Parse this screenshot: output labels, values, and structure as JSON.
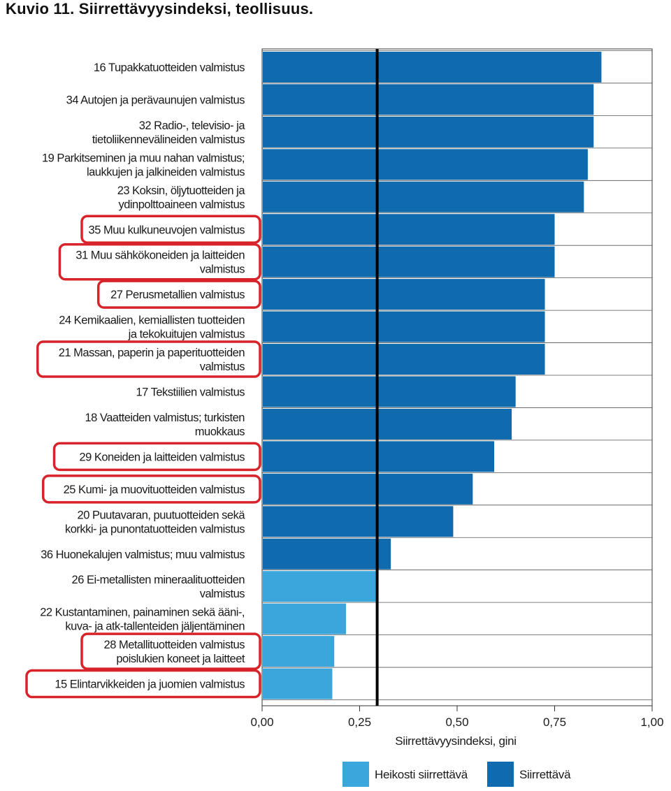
{
  "figure_title": "Kuvio 11. Siirrettävyysindeksi, teollisuus.",
  "colors": {
    "strong": "#0f6aae",
    "weak": "#3aa6dc",
    "highlight": "#d8232a",
    "threshold_line": "#000000"
  },
  "chart_data": {
    "type": "bar",
    "orientation": "horizontal",
    "title": "",
    "xlabel": "Siirrettävyysindeksi, gini",
    "ylabel": "",
    "xlim": [
      0,
      1
    ],
    "x_ticks": [
      "0,00",
      "0,25",
      "0,50",
      "0,75",
      "1,00"
    ],
    "threshold": 0.295,
    "grid": true,
    "legend_position": "bottom",
    "legend": [
      {
        "name": "Heikosti siirrettävä",
        "color": "#3aa6dc"
      },
      {
        "name": "Siirrettävä",
        "color": "#0f6aae"
      }
    ],
    "categories": [
      [
        "16 Tupakkatuotteiden valmistus"
      ],
      [
        "34 Autojen ja perävaunujen valmistus"
      ],
      [
        "32 Radio-, televisio- ja",
        "tietoliikennevälineiden valmistus"
      ],
      [
        "19 Parkitseminen ja muu nahan valmistus;",
        "laukkujen ja jalkineiden valmistus"
      ],
      [
        "23 Koksin, öljytuotteiden ja",
        "ydinpolttoaineen valmistus"
      ],
      [
        "35 Muu kulkuneuvojen valmistus"
      ],
      [
        "31 Muu sähkökoneiden ja laitteiden",
        "valmistus"
      ],
      [
        "27 Perusmetallien valmistus"
      ],
      [
        "24 Kemikaalien, kemiallisten tuotteiden",
        "ja tekokuitujen valmistus"
      ],
      [
        "21 Massan, paperin ja paperituotteiden",
        "valmistus"
      ],
      [
        "17 Tekstiilien valmistus"
      ],
      [
        "18 Vaatteiden valmistus; turkisten",
        "muokkaus"
      ],
      [
        "29 Koneiden ja laitteiden valmistus"
      ],
      [
        "25 Kumi- ja muovituotteiden valmistus"
      ],
      [
        "20 Puutavaran, puutuotteiden sekä",
        "korkki- ja punontatuotteiden valmistus"
      ],
      [
        "36 Huonekalujen valmistus; muu valmistus"
      ],
      [
        "26 Ei-metallisten mineraalituotteiden",
        "valmistus"
      ],
      [
        "22 Kustantaminen, painaminen sekä ääni-,",
        "kuva- ja atk-tallenteiden jäljentäminen"
      ],
      [
        "28 Metallituotteiden valmistus",
        "poislukien koneet ja laitteet"
      ],
      [
        "15 Elintarvikkeiden ja juomien valmistus"
      ]
    ],
    "values": [
      0.87,
      0.85,
      0.85,
      0.835,
      0.825,
      0.75,
      0.75,
      0.725,
      0.725,
      0.725,
      0.65,
      0.64,
      0.595,
      0.54,
      0.49,
      0.33,
      0.295,
      0.215,
      0.185,
      0.18
    ],
    "group": [
      "Siirrettävä",
      "Siirrettävä",
      "Siirrettävä",
      "Siirrettävä",
      "Siirrettävä",
      "Siirrettävä",
      "Siirrettävä",
      "Siirrettävä",
      "Siirrettävä",
      "Siirrettävä",
      "Siirrettävä",
      "Siirrettävä",
      "Siirrettävä",
      "Siirrettävä",
      "Siirrettävä",
      "Siirrettävä",
      "Heikosti siirrettävä",
      "Heikosti siirrettävä",
      "Heikosti siirrettävä",
      "Heikosti siirrettävä"
    ],
    "highlighted": [
      false,
      false,
      false,
      false,
      false,
      true,
      true,
      true,
      false,
      true,
      false,
      false,
      true,
      true,
      false,
      false,
      false,
      false,
      true,
      true
    ]
  }
}
